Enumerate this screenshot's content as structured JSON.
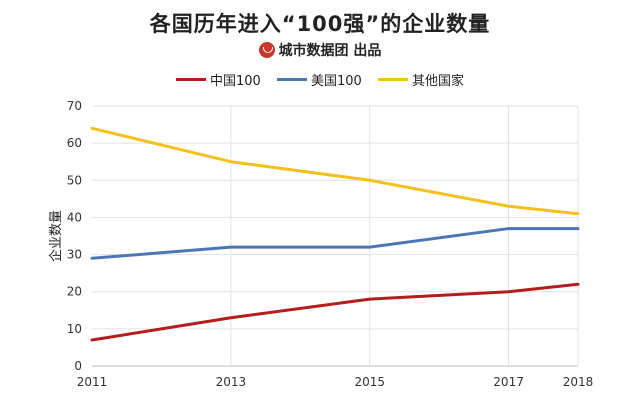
{
  "header": {
    "title": "各国历年进入“100强”的企业数量",
    "source": "城市数据团 出品",
    "logo_icon": "city-data-logo-icon"
  },
  "chart_data": {
    "type": "line",
    "x": [
      2011,
      2013,
      2015,
      2017,
      2018
    ],
    "x_tick_labels": [
      "2011",
      "2013",
      "2015",
      "2017",
      "2018"
    ],
    "series": [
      {
        "name": "中国100",
        "color": "#b51c1c",
        "values": [
          7,
          13,
          18,
          20,
          22
        ]
      },
      {
        "name": "美国100",
        "color": "#4a76b8",
        "values": [
          29,
          32,
          32,
          37,
          37
        ]
      },
      {
        "name": "其他国家",
        "color": "#f4c01e",
        "values": [
          64,
          55,
          50,
          43,
          41
        ]
      }
    ],
    "ylabel": "企业数量",
    "xlabel": "",
    "ylim": [
      0,
      70
    ],
    "y_ticks": [
      0,
      10,
      20,
      30,
      40,
      50,
      60,
      70
    ],
    "grid": "horizontal",
    "legend_position": "top"
  }
}
